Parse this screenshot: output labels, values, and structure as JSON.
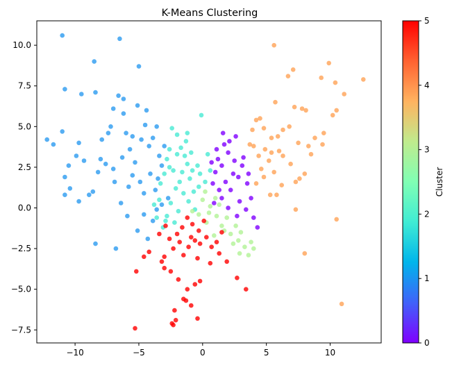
{
  "chart_data": {
    "type": "scatter",
    "title": "K-Means Clustering",
    "xlabel": "",
    "ylabel": "",
    "xlim": [
      -13,
      14
    ],
    "ylim": [
      -8.3,
      11.5
    ],
    "x_ticks": [
      -10,
      -5,
      0,
      5,
      10
    ],
    "x_tick_labels": [
      "−10",
      "−5",
      "0",
      "5",
      "10"
    ],
    "y_ticks": [
      -7.5,
      -5.0,
      -2.5,
      0.0,
      2.5,
      5.0,
      7.5,
      10.0
    ],
    "y_tick_labels": [
      "−7.5",
      "−5.0",
      "−2.5",
      "0.0",
      "2.5",
      "5.0",
      "7.5",
      "10.0"
    ],
    "grid": false,
    "colormap": "rainbow",
    "point_alpha": 0.8,
    "colorbar": {
      "label": "Cluster",
      "range": [
        0,
        5
      ],
      "ticks": [
        0,
        1,
        2,
        3,
        4,
        5
      ],
      "tick_labels": [
        "0",
        "1",
        "2",
        "3",
        "4",
        "5"
      ]
    },
    "series": [
      {
        "cluster": 0,
        "color": "#8000ff",
        "points": [
          [
            1.2,
            3.0
          ],
          [
            1.5,
            2.6
          ],
          [
            2.0,
            3.4
          ],
          [
            2.5,
            2.9
          ],
          [
            1.0,
            2.2
          ],
          [
            1.8,
            1.6
          ],
          [
            2.8,
            1.9
          ],
          [
            3.1,
            2.6
          ],
          [
            0.8,
            1.5
          ],
          [
            2.2,
            1.1
          ],
          [
            1.5,
            0.6
          ],
          [
            2.9,
            0.4
          ],
          [
            3.5,
            1.5
          ],
          [
            3.2,
            3.1
          ],
          [
            2.1,
            4.1
          ],
          [
            1.6,
            4.6
          ],
          [
            2.6,
            4.4
          ],
          [
            0.9,
            0.3
          ],
          [
            1.3,
            1.1
          ],
          [
            2.4,
            2.1
          ],
          [
            3.8,
            0.6
          ],
          [
            4.0,
            -0.6
          ],
          [
            4.3,
            -1.2
          ],
          [
            2.7,
            -0.5
          ],
          [
            3.4,
            -0.1
          ],
          [
            1.1,
            3.6
          ],
          [
            0.7,
            2.8
          ],
          [
            3.6,
            2.1
          ],
          [
            2.0,
            0.0
          ],
          [
            1.7,
            3.9
          ]
        ]
      },
      {
        "cluster": 1,
        "color": "#2c9bf0",
        "points": [
          [
            -11.0,
            10.6
          ],
          [
            -6.5,
            10.4
          ],
          [
            -8.5,
            9.0
          ],
          [
            -5.0,
            8.7
          ],
          [
            -10.8,
            7.3
          ],
          [
            -8.4,
            7.1
          ],
          [
            -9.5,
            7.0
          ],
          [
            -12.2,
            4.2
          ],
          [
            -11.7,
            3.9
          ],
          [
            -11.0,
            4.7
          ],
          [
            -10.5,
            2.6
          ],
          [
            -10.8,
            1.9
          ],
          [
            -10.4,
            1.2
          ],
          [
            -10.8,
            0.8
          ],
          [
            -9.9,
            3.2
          ],
          [
            -9.7,
            4.0
          ],
          [
            -8.6,
            1.0
          ],
          [
            -8.9,
            0.8
          ],
          [
            -9.7,
            0.4
          ],
          [
            -8.4,
            -2.2
          ],
          [
            -6.8,
            -2.5
          ],
          [
            -7.0,
            6.1
          ],
          [
            -7.2,
            5.0
          ],
          [
            -7.9,
            4.2
          ],
          [
            -8.0,
            3.0
          ],
          [
            -7.0,
            2.4
          ],
          [
            -6.6,
            6.9
          ],
          [
            -6.2,
            5.8
          ],
          [
            -6.0,
            4.6
          ],
          [
            -5.7,
            3.6
          ],
          [
            -5.3,
            2.8
          ],
          [
            -4.9,
            1.6
          ],
          [
            -4.6,
            0.9
          ],
          [
            -5.8,
            1.3
          ],
          [
            -6.4,
            0.3
          ],
          [
            -4.2,
            3.8
          ],
          [
            -4.5,
            5.1
          ],
          [
            -3.6,
            5.0
          ],
          [
            -3.9,
            4.3
          ],
          [
            -3.4,
            3.2
          ],
          [
            -4.1,
            2.1
          ],
          [
            -3.7,
            1.1
          ],
          [
            -4.6,
            -0.4
          ],
          [
            -5.1,
            -1.4
          ],
          [
            -3.9,
            -0.8
          ],
          [
            -3.2,
            2.6
          ],
          [
            -3.5,
            1.8
          ],
          [
            -2.7,
            0.6
          ],
          [
            -3.0,
            3.8
          ],
          [
            -5.5,
            2.0
          ],
          [
            -6.9,
            1.6
          ],
          [
            -7.6,
            2.7
          ],
          [
            -8.2,
            2.2
          ],
          [
            -9.3,
            2.9
          ],
          [
            -5.5,
            4.4
          ],
          [
            -4.8,
            4.2
          ],
          [
            -6.3,
            3.1
          ],
          [
            -7.4,
            4.6
          ],
          [
            -5.9,
            -0.5
          ],
          [
            -4.3,
            -1.9
          ],
          [
            -3.6,
            -0.1
          ],
          [
            -3.2,
            0.2
          ],
          [
            -6.2,
            6.7
          ],
          [
            -5.1,
            6.3
          ],
          [
            -4.4,
            6.0
          ]
        ]
      },
      {
        "cluster": 2,
        "color": "#48ead3",
        "points": [
          [
            -2.8,
            3.0
          ],
          [
            -2.3,
            2.3
          ],
          [
            -1.7,
            3.7
          ],
          [
            -1.2,
            2.7
          ],
          [
            -2.1,
            1.2
          ],
          [
            -1.5,
            0.9
          ],
          [
            -2.5,
            0.3
          ],
          [
            -1.0,
            1.8
          ],
          [
            -0.4,
            2.6
          ],
          [
            -0.7,
            1.0
          ],
          [
            -2.8,
            -0.5
          ],
          [
            -2.2,
            -0.9
          ],
          [
            -3.1,
            -1.2
          ],
          [
            -2.0,
            4.5
          ],
          [
            -2.4,
            4.9
          ],
          [
            -1.3,
            4.1
          ],
          [
            -0.9,
            3.4
          ],
          [
            -0.2,
            2.1
          ],
          [
            0.2,
            1.6
          ],
          [
            0.6,
            2.3
          ],
          [
            0.4,
            3.3
          ],
          [
            -0.1,
            5.7
          ],
          [
            -3.3,
            1.5
          ],
          [
            -3.0,
            2.1
          ],
          [
            -2.6,
            3.6
          ],
          [
            -1.8,
            1.6
          ],
          [
            -1.1,
            0.4
          ],
          [
            -0.6,
            -0.1
          ],
          [
            -3.4,
            0.5
          ],
          [
            -2.9,
            -0.8
          ],
          [
            -1.6,
            2.2
          ],
          [
            -2.0,
            3.3
          ],
          [
            -1.4,
            3.2
          ],
          [
            -0.8,
            2.3
          ],
          [
            -0.3,
            1.3
          ],
          [
            -2.6,
            2.5
          ],
          [
            -1.9,
            -0.2
          ],
          [
            -3.6,
            -0.6
          ],
          [
            -3.8,
            0.2
          ],
          [
            -1.2,
            4.6
          ]
        ]
      },
      {
        "cluster": 3,
        "color": "#b2f396",
        "points": [
          [
            0.0,
            0.5
          ],
          [
            0.6,
            0.1
          ],
          [
            1.1,
            -0.5
          ],
          [
            0.3,
            -0.9
          ],
          [
            1.5,
            -1.1
          ],
          [
            2.2,
            -1.6
          ],
          [
            2.8,
            -2.0
          ],
          [
            3.3,
            -2.4
          ],
          [
            3.6,
            -2.9
          ],
          [
            4.0,
            -2.5
          ],
          [
            2.6,
            -1.1
          ],
          [
            1.9,
            -0.6
          ],
          [
            0.9,
            -1.7
          ],
          [
            -0.3,
            -0.4
          ],
          [
            -0.8,
            -0.2
          ],
          [
            3.0,
            -1.5
          ],
          [
            2.4,
            -2.2
          ],
          [
            1.3,
            0.2
          ],
          [
            0.5,
            -0.3
          ],
          [
            3.8,
            -2.1
          ],
          [
            1.7,
            -1.4
          ],
          [
            2.9,
            -2.8
          ],
          [
            1.0,
            0.6
          ],
          [
            0.2,
            1.0
          ]
        ]
      },
      {
        "cluster": 4,
        "color": "#ffa256",
        "points": [
          [
            5.6,
            10.0
          ],
          [
            9.9,
            8.9
          ],
          [
            9.3,
            8.0
          ],
          [
            10.4,
            7.7
          ],
          [
            11.1,
            7.0
          ],
          [
            12.6,
            7.9
          ],
          [
            7.1,
            8.5
          ],
          [
            6.7,
            8.1
          ],
          [
            5.7,
            6.5
          ],
          [
            7.8,
            6.1
          ],
          [
            8.1,
            6.0
          ],
          [
            7.2,
            6.2
          ],
          [
            10.2,
            5.7
          ],
          [
            10.5,
            6.0
          ],
          [
            4.2,
            5.4
          ],
          [
            4.5,
            5.5
          ],
          [
            3.9,
            4.8
          ],
          [
            4.0,
            3.8
          ],
          [
            3.7,
            3.9
          ],
          [
            4.8,
            4.9
          ],
          [
            5.4,
            4.3
          ],
          [
            5.9,
            4.4
          ],
          [
            6.3,
            4.8
          ],
          [
            6.8,
            5.0
          ],
          [
            7.5,
            4.0
          ],
          [
            8.3,
            3.8
          ],
          [
            9.5,
            4.6
          ],
          [
            9.4,
            3.9
          ],
          [
            8.5,
            3.3
          ],
          [
            8.0,
            2.1
          ],
          [
            6.9,
            2.7
          ],
          [
            6.3,
            3.2
          ],
          [
            5.6,
            2.2
          ],
          [
            5.2,
            2.9
          ],
          [
            4.9,
            3.6
          ],
          [
            4.4,
            3.2
          ],
          [
            4.6,
            2.4
          ],
          [
            4.2,
            1.5
          ],
          [
            4.8,
            1.9
          ],
          [
            5.3,
            0.8
          ],
          [
            5.8,
            0.8
          ],
          [
            6.2,
            1.4
          ],
          [
            7.3,
            1.6
          ],
          [
            7.6,
            1.8
          ],
          [
            6.0,
            3.5
          ],
          [
            5.4,
            3.4
          ],
          [
            8.8,
            4.3
          ],
          [
            7.3,
            -0.1
          ],
          [
            10.5,
            -0.7
          ],
          [
            8.0,
            -2.8
          ],
          [
            10.9,
            -5.9
          ]
        ]
      },
      {
        "cluster": 5,
        "color": "#ff0000",
        "points": [
          [
            -1.2,
            -0.6
          ],
          [
            -0.8,
            -1.0
          ],
          [
            -0.3,
            -1.4
          ],
          [
            -1.6,
            -1.2
          ],
          [
            -2.0,
            -1.6
          ],
          [
            -0.6,
            -2.0
          ],
          [
            -1.1,
            -2.4
          ],
          [
            -0.2,
            -2.2
          ],
          [
            0.3,
            -1.8
          ],
          [
            0.7,
            -2.4
          ],
          [
            1.1,
            -2.1
          ],
          [
            1.3,
            -2.8
          ],
          [
            0.6,
            -3.4
          ],
          [
            -0.4,
            -3.1
          ],
          [
            -1.5,
            -2.9
          ],
          [
            -2.3,
            -2.5
          ],
          [
            -2.6,
            -1.9
          ],
          [
            -3.0,
            -3.0
          ],
          [
            -3.2,
            -3.3
          ],
          [
            -3.0,
            -3.7
          ],
          [
            -2.5,
            -3.9
          ],
          [
            -1.9,
            -4.4
          ],
          [
            -1.2,
            -5.0
          ],
          [
            -1.5,
            -5.6
          ],
          [
            -1.3,
            -5.7
          ],
          [
            -0.9,
            -6.0
          ],
          [
            -0.4,
            -6.8
          ],
          [
            -2.2,
            -6.3
          ],
          [
            -2.4,
            -7.1
          ],
          [
            -2.1,
            -6.9
          ],
          [
            -2.3,
            -7.2
          ],
          [
            -5.3,
            -7.4
          ],
          [
            -5.2,
            -3.9
          ],
          [
            -4.6,
            -3.0
          ],
          [
            -4.2,
            -2.7
          ],
          [
            3.4,
            -5.0
          ],
          [
            2.7,
            -4.3
          ],
          [
            1.9,
            -3.3
          ],
          [
            1.5,
            -1.5
          ],
          [
            0.1,
            -0.8
          ],
          [
            -0.9,
            -1.8
          ],
          [
            -1.8,
            -2.1
          ],
          [
            -0.2,
            -4.5
          ],
          [
            -0.6,
            -4.7
          ],
          [
            -2.9,
            -1.1
          ],
          [
            -3.4,
            -1.6
          ]
        ]
      }
    ]
  }
}
